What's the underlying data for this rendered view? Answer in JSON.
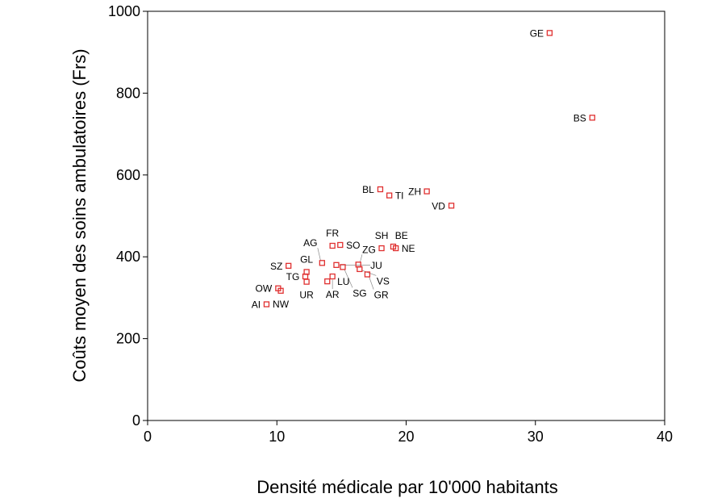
{
  "chart_data": {
    "type": "scatter",
    "title": "",
    "xlabel": "Densité médicale par 10'000 habitants",
    "ylabel": "Coûts moyen des soins ambulatoires (Frs)",
    "xlim": [
      0,
      40
    ],
    "ylim": [
      0,
      1000
    ],
    "xticks": [
      0,
      10,
      20,
      30,
      40
    ],
    "yticks": [
      0,
      200,
      400,
      600,
      800,
      1000
    ],
    "grid": false,
    "marker": "open-square",
    "marker_color": "#e03030",
    "points": [
      {
        "label": "AI",
        "x": 9.2,
        "y": 284
      },
      {
        "label": "OW",
        "x": 10.1,
        "y": 323
      },
      {
        "label": "NW",
        "x": 10.3,
        "y": 317
      },
      {
        "label": "SZ",
        "x": 10.9,
        "y": 378
      },
      {
        "label": "GL",
        "x": 12.3,
        "y": 363
      },
      {
        "label": "TG",
        "x": 12.2,
        "y": 352
      },
      {
        "label": "UR",
        "x": 12.3,
        "y": 339
      },
      {
        "label": "AG",
        "x": 13.5,
        "y": 385
      },
      {
        "label": "LU",
        "x": 13.9,
        "y": 340
      },
      {
        "label": "AR",
        "x": 14.3,
        "y": 352
      },
      {
        "label": "FR",
        "x": 14.3,
        "y": 427
      },
      {
        "label": "SO",
        "x": 14.9,
        "y": 429
      },
      {
        "label": "JU",
        "x": 14.6,
        "y": 380
      },
      {
        "label": "SG",
        "x": 15.1,
        "y": 375
      },
      {
        "label": "ZG",
        "x": 16.3,
        "y": 381
      },
      {
        "label": "VS",
        "x": 16.4,
        "y": 370
      },
      {
        "label": "GR",
        "x": 17.0,
        "y": 357
      },
      {
        "label": "SH",
        "x": 18.1,
        "y": 421
      },
      {
        "label": "BE",
        "x": 19.0,
        "y": 425
      },
      {
        "label": "NE",
        "x": 19.2,
        "y": 421
      },
      {
        "label": "BL",
        "x": 18.0,
        "y": 565
      },
      {
        "label": "TI",
        "x": 18.7,
        "y": 550
      },
      {
        "label": "ZH",
        "x": 21.6,
        "y": 560
      },
      {
        "label": "VD",
        "x": 23.5,
        "y": 525
      },
      {
        "label": "GE",
        "x": 31.1,
        "y": 947
      },
      {
        "label": "BS",
        "x": 34.4,
        "y": 740
      }
    ]
  }
}
